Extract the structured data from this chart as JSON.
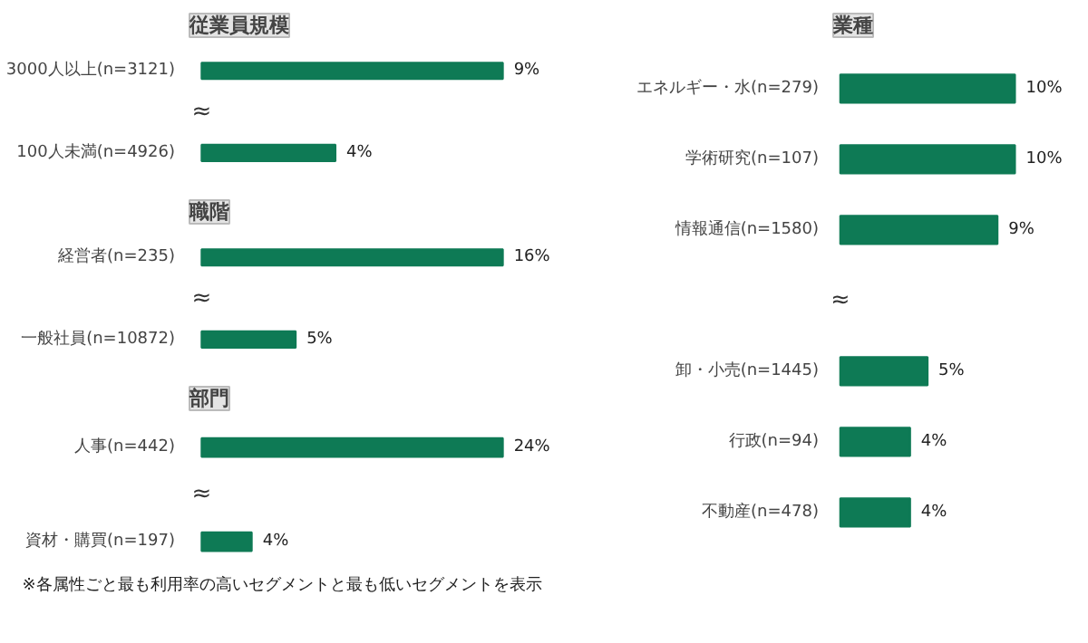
{
  "chart_data": [
    {
      "type": "bar",
      "orientation": "horizontal",
      "title": "従業員規模",
      "categories": [
        "3000人以上(n=3121)",
        "100人未満(n=4926)"
      ],
      "values": [
        9,
        4
      ],
      "value_labels": [
        "9%",
        "4%"
      ],
      "color": "#0e7a55",
      "annotations": [
        "≈"
      ]
    },
    {
      "type": "bar",
      "orientation": "horizontal",
      "title": "職階",
      "categories": [
        "経営者(n=235)",
        "一般社員(n=10872)"
      ],
      "values": [
        16,
        5
      ],
      "value_labels": [
        "16%",
        "5%"
      ],
      "color": "#0e7a55",
      "annotations": [
        "≈"
      ]
    },
    {
      "type": "bar",
      "orientation": "horizontal",
      "title": "部門",
      "categories": [
        "人事(n=442)",
        "資材・購買(n=197)"
      ],
      "values": [
        24,
        4
      ],
      "value_labels": [
        "24%",
        "4%"
      ],
      "color": "#0e7a55",
      "annotations": [
        "≈",
        "※各属性ごと最も利用率の高いセグメントと最も低いセグメントを表示"
      ]
    },
    {
      "type": "bar",
      "orientation": "horizontal",
      "title": "業種",
      "categories": [
        "エネルギー・水(n=279)",
        "学術研究(n=107)",
        "情報通信(n=1580)",
        "卸・小売(n=1445)",
        "行政(n=94)",
        "不動産(n=478)"
      ],
      "values": [
        10,
        10,
        9,
        5,
        4,
        4
      ],
      "value_labels": [
        "10%",
        "10%",
        "9%",
        "5%",
        "4%",
        "4%"
      ],
      "color": "#0e7a55",
      "annotations": [
        "≈"
      ]
    }
  ]
}
